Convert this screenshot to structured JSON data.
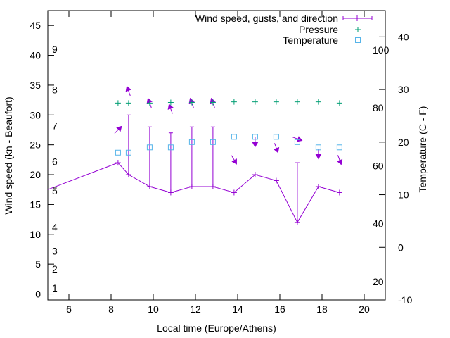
{
  "chart_data": {
    "type": "line",
    "title": "",
    "xlabel": "Local time (Europe/Athens)",
    "ylabel": "Wind speed (kn - Beaufort)",
    "y2label": "Temperature (C - F)",
    "xlim": [
      5,
      21
    ],
    "ylim": [
      -1,
      47.5
    ],
    "y2lim": [
      -10,
      45
    ],
    "xticks": [
      6,
      8,
      10,
      12,
      14,
      16,
      18,
      20
    ],
    "yticks": [
      0,
      5,
      10,
      15,
      20,
      25,
      30,
      35,
      40,
      45
    ],
    "y2ticks": [
      -10,
      0,
      10,
      20,
      30,
      40
    ],
    "beaufort_labels": [
      {
        "label": "1",
        "kn": 1
      },
      {
        "label": "2",
        "kn": 4.2
      },
      {
        "label": "3",
        "kn": 7.2
      },
      {
        "label": "4",
        "kn": 11.2
      },
      {
        "label": "5",
        "kn": 17.3
      },
      {
        "label": "6",
        "kn": 22.2
      },
      {
        "label": "7",
        "kn": 28.2
      },
      {
        "label": "8",
        "kn": 34.2
      },
      {
        "label": "9",
        "kn": 41
      }
    ],
    "fahrenheit_labels": [
      {
        "label": "20",
        "celsius": -6.5
      },
      {
        "label": "40",
        "celsius": 4.5
      },
      {
        "label": "60",
        "celsius": 15.5
      },
      {
        "label": "80",
        "celsius": 26.5
      },
      {
        "label": "100",
        "celsius": 37.5
      }
    ],
    "legend": [
      {
        "label": "Wind speed, gusts, and direction",
        "color": "#9400d3"
      },
      {
        "label": "Pressure",
        "color": "#009e73"
      },
      {
        "label": "Temperature",
        "color": "#56b4e9"
      }
    ],
    "series": [
      {
        "name": "Wind speed, gusts, and direction",
        "x": [
          5,
          8.33,
          8.83,
          9.83,
          10.83,
          11.83,
          12.83,
          13.83,
          14.83,
          15.83,
          16.83,
          17.83,
          18.83
        ],
        "wind": [
          17.5,
          22,
          20,
          18,
          17,
          18,
          18,
          17,
          20,
          19,
          12,
          18,
          17
        ],
        "gust": [
          null,
          null,
          30,
          28,
          27,
          28,
          28,
          null,
          null,
          null,
          22,
          null,
          null
        ],
        "direction_deg": [
          null,
          225,
          160,
          160,
          160,
          160,
          160,
          330,
          360,
          340,
          290,
          360,
          340
        ]
      },
      {
        "name": "Pressure",
        "x": [
          8.33,
          8.83,
          9.83,
          10.83,
          11.83,
          12.83,
          13.83,
          14.83,
          15.83,
          16.83,
          17.83,
          18.83
        ],
        "marker_kn": [
          32,
          32,
          32,
          32.1,
          32.1,
          32.1,
          32.2,
          32.2,
          32.2,
          32.2,
          32.2,
          32
        ]
      },
      {
        "name": "Temperature",
        "x": [
          8.33,
          8.83,
          9.83,
          10.83,
          11.83,
          12.83,
          13.83,
          14.83,
          15.83,
          16.83,
          17.83,
          18.83
        ],
        "celsius": [
          18,
          18,
          19,
          19,
          20,
          20,
          21,
          21,
          21,
          20,
          19,
          19
        ]
      }
    ]
  }
}
